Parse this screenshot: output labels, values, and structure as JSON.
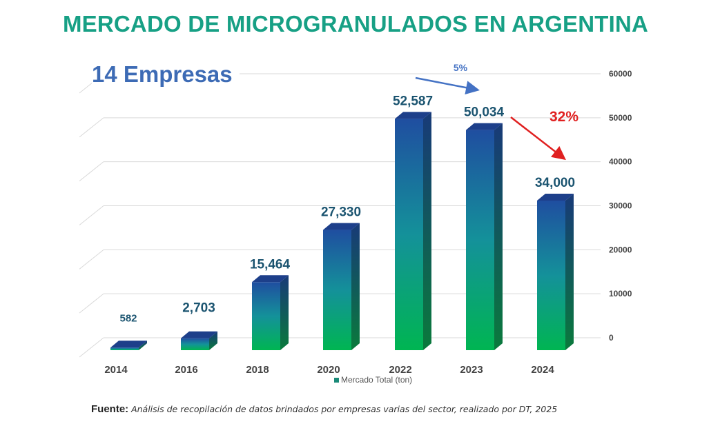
{
  "chart_data": {
    "type": "bar",
    "title": "MERCADO DE MICROGRANULADOS EN ARGENTINA",
    "subtitle": "14 Empresas",
    "categories": [
      "2014",
      "2016",
      "2018",
      "2020",
      "2022",
      "2023",
      "2024"
    ],
    "series": [
      {
        "name": "Mercado Total (ton)",
        "values": [
          582,
          2703,
          15464,
          27330,
          52587,
          50034,
          34000
        ]
      }
    ],
    "data_labels": [
      "582",
      "2,703",
      "15,464",
      "27,330",
      "52,587",
      "50,034",
      "34,000"
    ],
    "y_ticks": [
      0,
      10000,
      20000,
      30000,
      40000,
      50000,
      60000
    ],
    "ylim": [
      0,
      60000
    ],
    "y_axis_side": "right",
    "grid": true,
    "legend_position": "bottom",
    "annotations": [
      {
        "text": "5%",
        "from": "2022",
        "to": "2023",
        "color": "#4472c4"
      },
      {
        "text": "32%",
        "from": "2023",
        "to": "2024",
        "color": "#e02020"
      }
    ],
    "colors": {
      "bar_top": "#1f4ea0",
      "bar_bottom": "#00b552",
      "label": "#1b5470",
      "title": "#17a085"
    }
  },
  "source": {
    "label": "Fuente:",
    "text": "Análisis de recopilación de datos brindados por empresas varias del sector, realizado por DT, 2025"
  }
}
